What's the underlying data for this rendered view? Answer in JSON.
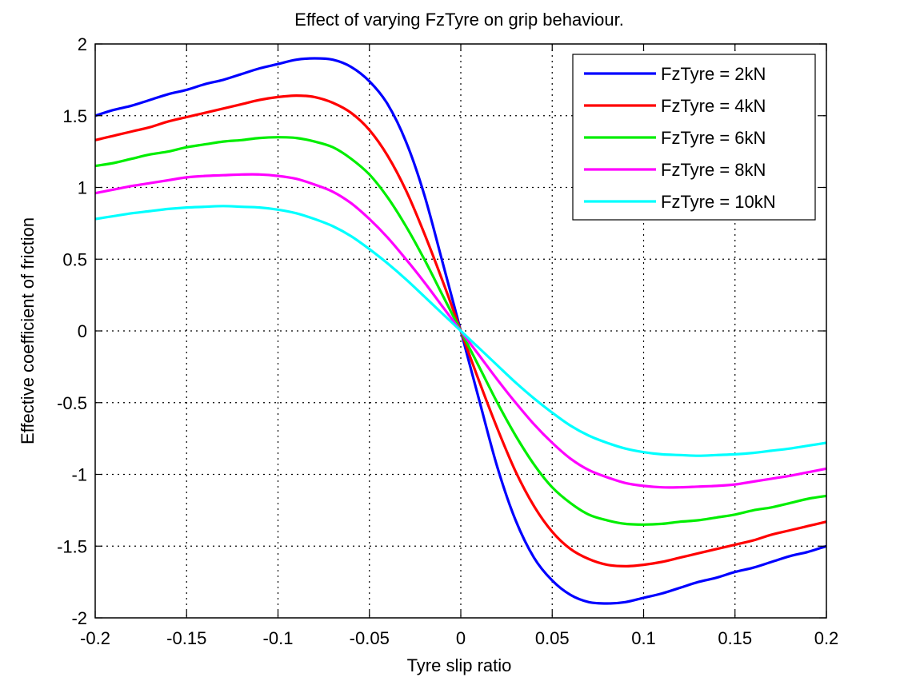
{
  "chart_data": {
    "type": "line",
    "title": "Effect of varying FzTyre on grip behaviour.",
    "xlabel": "Tyre slip ratio",
    "ylabel": "Effective coefficient of friction",
    "xlim": [
      -0.2,
      0.2
    ],
    "ylim": [
      -2,
      2
    ],
    "x_ticks": [
      -0.2,
      -0.15,
      -0.1,
      -0.05,
      0,
      0.05,
      0.1,
      0.15,
      0.2
    ],
    "x_tick_labels": [
      "-0.2",
      "-0.15",
      "-0.1",
      "-0.05",
      "0",
      "0.05",
      "0.1",
      "0.15",
      "0.2"
    ],
    "y_ticks": [
      2,
      1.5,
      1,
      0.5,
      0,
      -0.5,
      -1,
      -1.5,
      -2
    ],
    "y_tick_labels": [
      "2",
      "1.5",
      "1",
      "0.5",
      "0",
      "-0.5",
      "-1",
      "-1.5",
      "-2"
    ],
    "grid": true,
    "legend_position": "top-right",
    "x": [
      0,
      0.01,
      0.02,
      0.03,
      0.04,
      0.05,
      0.06,
      0.07,
      0.08,
      0.09,
      0.1,
      0.11,
      0.12,
      0.13,
      0.14,
      0.15,
      0.16,
      0.17,
      0.18,
      0.19,
      0.2
    ],
    "series": [
      {
        "name": "FzTyre = 2kN",
        "color": "#0000ff",
        "values": [
          0,
          -0.48,
          -0.95,
          -1.32,
          -1.58,
          -1.74,
          -1.84,
          -1.89,
          -1.9,
          -1.89,
          -1.86,
          -1.83,
          -1.79,
          -1.75,
          -1.72,
          -1.68,
          -1.65,
          -1.61,
          -1.57,
          -1.54,
          -1.5
        ]
      },
      {
        "name": "FzTyre = 4kN",
        "color": "#ff0000",
        "values": [
          0,
          -0.35,
          -0.68,
          -0.98,
          -1.22,
          -1.4,
          -1.52,
          -1.59,
          -1.63,
          -1.64,
          -1.63,
          -1.61,
          -1.58,
          -1.55,
          -1.52,
          -1.49,
          -1.46,
          -1.42,
          -1.39,
          -1.36,
          -1.33
        ]
      },
      {
        "name": "FzTyre = 6kN",
        "color": "#00ee00",
        "values": [
          0,
          -0.25,
          -0.5,
          -0.73,
          -0.93,
          -1.09,
          -1.2,
          -1.28,
          -1.32,
          -1.345,
          -1.35,
          -1.345,
          -1.33,
          -1.32,
          -1.3,
          -1.28,
          -1.25,
          -1.23,
          -1.2,
          -1.17,
          -1.15
        ]
      },
      {
        "name": "FzTyre = 8kN",
        "color": "#ff00ff",
        "values": [
          0,
          -0.17,
          -0.34,
          -0.5,
          -0.65,
          -0.78,
          -0.89,
          -0.97,
          -1.02,
          -1.06,
          -1.08,
          -1.09,
          -1.09,
          -1.085,
          -1.08,
          -1.07,
          -1.05,
          -1.03,
          -1.01,
          -0.985,
          -0.96
        ]
      },
      {
        "name": "FzTyre = 10kN",
        "color": "#00ffff",
        "values": [
          0,
          -0.12,
          -0.24,
          -0.36,
          -0.47,
          -0.57,
          -0.66,
          -0.73,
          -0.78,
          -0.82,
          -0.845,
          -0.86,
          -0.865,
          -0.87,
          -0.865,
          -0.86,
          -0.85,
          -0.835,
          -0.82,
          -0.8,
          -0.78
        ]
      }
    ]
  }
}
